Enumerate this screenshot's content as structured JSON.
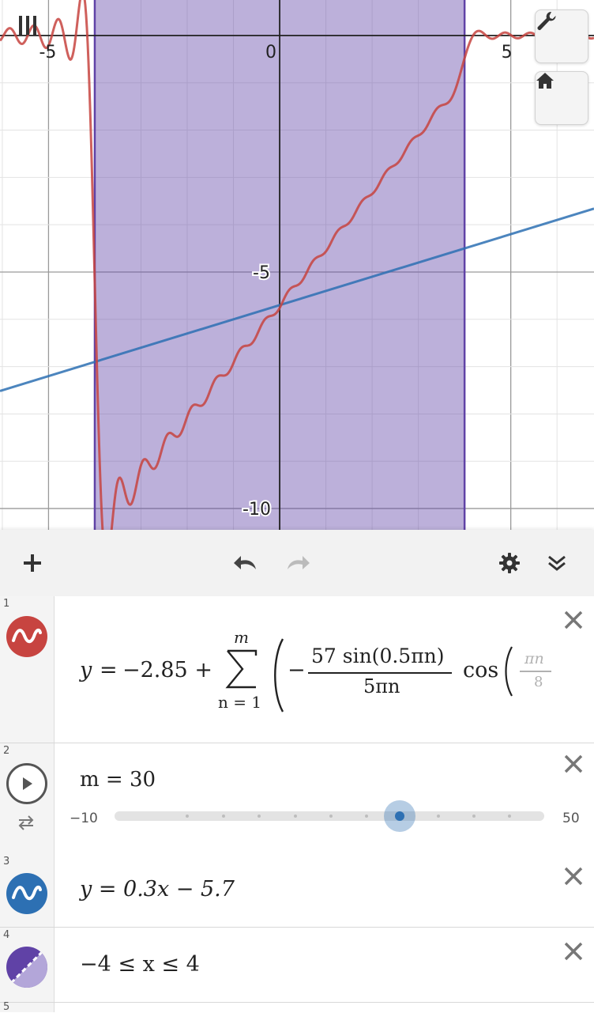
{
  "graph": {
    "x_tick_labels": [
      "-5",
      "0",
      "5"
    ],
    "y_tick_labels": [
      "-5",
      "-10"
    ],
    "viewport": {
      "xmin": -6.05,
      "xmax": 6.8,
      "ymin": -10.45,
      "ymax": 0.75
    },
    "shade_interval": [
      -4,
      4
    ],
    "colors": {
      "fourier": "#c74440",
      "line": "#2d70b3",
      "shade": "#6042a6"
    },
    "buttons": {
      "menu": "menu-icon",
      "settings": "wrench-icon",
      "home": "home-icon"
    }
  },
  "toolbar": {
    "add": "plus-icon",
    "undo": "undo-icon",
    "redo": "redo-icon",
    "settings": "gear-icon",
    "collapse": "double-chevron-down-icon"
  },
  "expressions": [
    {
      "num": "1",
      "color": "#c74440",
      "lhs": "y",
      "eq": "=",
      "const": "−2.85 +",
      "sum_top": "m",
      "sum_bottom": "n = 1",
      "frac_num": "57 sin(0.5πn)",
      "frac_den": "5πn",
      "cos": "cos",
      "tail_num": "πn",
      "tail_den": "8"
    },
    {
      "num": "2",
      "slider_label": "m = 30",
      "value": 30,
      "min": "−10",
      "max": "50"
    },
    {
      "num": "3",
      "color": "#2d70b3",
      "latex": "y = 0.3x − 5.7"
    },
    {
      "num": "4",
      "color": "#6042a6",
      "latex": "−4 ≤ x ≤ 4"
    },
    {
      "num": "5"
    }
  ]
}
